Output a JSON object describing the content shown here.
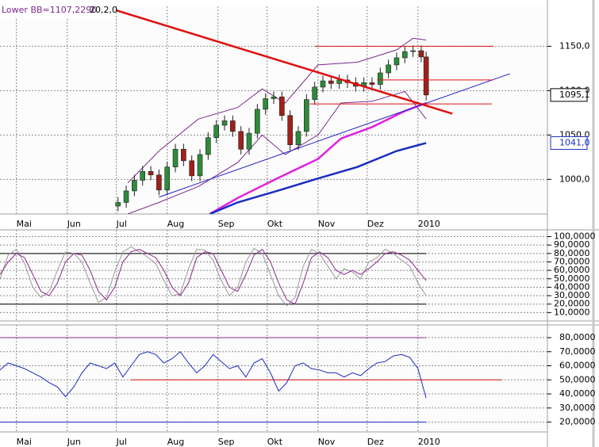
{
  "chart_data": [
    {
      "type": "candlestick",
      "indicator_label": "Lower BB=1107,2290",
      "indicator_params": "20,2,0",
      "x": [
        62,
        67,
        72,
        77,
        82,
        87,
        92,
        97,
        102,
        107,
        112,
        117,
        122,
        127,
        132,
        137,
        142,
        147,
        152,
        157,
        162,
        167,
        172,
        177,
        182,
        187,
        192,
        197,
        202,
        207,
        212,
        217,
        222,
        227,
        232,
        237,
        242,
        247,
        250
      ],
      "open": [
        970,
        974,
        987,
        999,
        1009,
        1005,
        988,
        1014,
        1034,
        1021,
        1004,
        1028,
        1047,
        1061,
        1066,
        1054,
        1034,
        1052,
        1079,
        1091,
        1093,
        1072,
        1039,
        1054,
        1090,
        1104,
        1111,
        1108,
        1112,
        1109,
        1105,
        1109,
        1107,
        1120,
        1129,
        1137,
        1144,
        1145,
        1138
      ],
      "high": [
        980,
        993,
        1005,
        1015,
        1015,
        1011,
        1020,
        1040,
        1040,
        1027,
        1034,
        1053,
        1067,
        1072,
        1072,
        1060,
        1058,
        1085,
        1097,
        1099,
        1099,
        1078,
        1060,
        1096,
        1110,
        1117,
        1117,
        1118,
        1118,
        1115,
        1115,
        1115,
        1126,
        1135,
        1143,
        1150,
        1151,
        1151,
        1144
      ],
      "low": [
        964,
        968,
        981,
        993,
        999,
        982,
        982,
        1008,
        1015,
        998,
        998,
        1022,
        1041,
        1055,
        1048,
        1028,
        1028,
        1046,
        1073,
        1085,
        1066,
        1033,
        1033,
        1048,
        1084,
        1098,
        1102,
        1102,
        1103,
        1099,
        1099,
        1101,
        1101,
        1114,
        1123,
        1131,
        1138,
        1132,
        1089
      ],
      "close": [
        974,
        987,
        999,
        1009,
        1005,
        988,
        1014,
        1034,
        1021,
        1004,
        1028,
        1047,
        1061,
        1066,
        1054,
        1034,
        1052,
        1079,
        1091,
        1093,
        1072,
        1039,
        1054,
        1090,
        1104,
        1111,
        1108,
        1112,
        1109,
        1105,
        1109,
        1107,
        1120,
        1129,
        1137,
        1144,
        1145,
        1138,
        1095.1
      ],
      "up_color": "#2e8b3a",
      "down_color": "#a0201a",
      "overlays": [
        {
          "color": "#7b2a8b",
          "width": 1,
          "x": [
            68,
            87,
            111,
            135,
            150,
            164,
            184,
            208,
            232,
            242,
            250
          ],
          "values": [
            996,
            1032,
            1068,
            1081,
            1102,
            1086,
            1129,
            1132,
            1146,
            1159,
            1157
          ]
        },
        {
          "color": "#7b2a8b",
          "width": 1,
          "x": [
            68,
            87,
            111,
            135,
            150,
            164,
            184,
            198,
            217,
            237,
            250
          ],
          "values": [
            961,
            974,
            992,
            1019,
            1050,
            1028,
            1050,
            1086,
            1088,
            1099,
            1068
          ]
        },
        {
          "color": "#e020e0",
          "width": 2.5,
          "x": [
            118,
            135,
            159,
            184,
            198,
            217,
            237,
            250
          ],
          "values": [
            961,
            979,
            1001,
            1023,
            1046,
            1059,
            1077,
            1086
          ]
        },
        {
          "color": "#1a2cc0",
          "width": 2.5,
          "x": [
            118,
            135,
            159,
            184,
            208,
            232,
            250
          ],
          "values": [
            961,
            974,
            987,
            1001,
            1014,
            1032,
            1041
          ]
        }
      ],
      "trendlines": [
        {
          "color": "#e01010",
          "width": 2.5,
          "x": [
            53,
            266
          ],
          "y": [
            1195,
            1074
          ]
        },
        {
          "color": "#2020c0",
          "width": 1,
          "x": [
            87,
            301
          ],
          "y": [
            980,
            1119
          ]
        },
        {
          "color": "#e01010",
          "width": 1,
          "x": [
            182,
            291
          ],
          "y": [
            1150,
            1150
          ]
        },
        {
          "color": "#e01010",
          "width": 1,
          "x": [
            220,
            291
          ],
          "y": [
            1112,
            1112
          ]
        },
        {
          "color": "#e01010",
          "width": 1,
          "x": [
            179,
            290
          ],
          "y": [
            1085,
            1085
          ]
        }
      ],
      "price_labels": [
        {
          "value": 1041,
          "label": "1041,0",
          "color": "#1a2cc0"
        },
        {
          "value": 1095.1,
          "label": "1095,1",
          "color": "#000000"
        }
      ],
      "xlim": [
        -10,
        324
      ],
      "xticks": [
        {
          "value": 0,
          "label": "Mai"
        },
        {
          "value": 31,
          "label": "Jun"
        },
        {
          "value": 61,
          "label": "Jul"
        },
        {
          "value": 92,
          "label": "Aug"
        },
        {
          "value": 123,
          "label": "Sep"
        },
        {
          "value": 153,
          "label": "Okt"
        },
        {
          "value": 184,
          "label": "Nov"
        },
        {
          "value": 214,
          "label": "Dez"
        },
        {
          "value": 245,
          "label": "2010"
        }
      ],
      "ylim": [
        961,
        1195
      ],
      "yticks": [
        {
          "value": 1000,
          "label": "1000,0"
        },
        {
          "value": 1050,
          "label": "1050,0"
        },
        {
          "value": 1100,
          "label": "1100,0"
        },
        {
          "value": 1150,
          "label": "1150,0"
        }
      ],
      "grid": true
    },
    {
      "type": "line",
      "x": [
        -10,
        -5,
        0,
        5,
        10,
        15,
        20,
        25,
        30,
        35,
        40,
        45,
        50,
        55,
        60,
        65,
        70,
        75,
        80,
        85,
        90,
        95,
        100,
        105,
        110,
        115,
        120,
        125,
        130,
        135,
        140,
        145,
        150,
        155,
        160,
        165,
        170,
        175,
        180,
        185,
        190,
        195,
        200,
        205,
        210,
        215,
        220,
        225,
        230,
        235,
        240,
        245,
        250
      ],
      "series": [
        {
          "color": "#9a9a9a",
          "width": 1,
          "values": [
            50,
            78,
            85,
            68,
            40,
            28,
            35,
            60,
            82,
            80,
            70,
            45,
            22,
            28,
            58,
            82,
            88,
            82,
            76,
            68,
            48,
            30,
            32,
            62,
            85,
            84,
            72,
            48,
            30,
            40,
            70,
            86,
            80,
            55,
            30,
            18,
            28,
            65,
            85,
            80,
            65,
            50,
            62,
            58,
            50,
            70,
            75,
            85,
            80,
            72,
            65,
            45,
            30
          ]
        },
        {
          "color": "#8b2a8b",
          "width": 1,
          "values": [
            55,
            70,
            80,
            75,
            55,
            35,
            30,
            45,
            70,
            80,
            78,
            60,
            35,
            25,
            40,
            70,
            82,
            85,
            80,
            75,
            60,
            40,
            30,
            45,
            75,
            82,
            80,
            60,
            40,
            35,
            55,
            78,
            85,
            70,
            45,
            25,
            20,
            45,
            75,
            82,
            75,
            60,
            55,
            60,
            55,
            62,
            70,
            80,
            82,
            78,
            72,
            60,
            48
          ]
        }
      ],
      "reference_lines": [
        {
          "value": 80,
          "color": "#000000",
          "from": -10,
          "to": 250
        },
        {
          "value": 20,
          "color": "#000000",
          "from": -10,
          "to": 250
        }
      ],
      "ylim": [
        0,
        108
      ],
      "yticks": [
        {
          "value": 10,
          "label": "10,0000"
        },
        {
          "value": 20,
          "label": "20,0000"
        },
        {
          "value": 30,
          "label": "30,0000"
        },
        {
          "value": 40,
          "label": "40,0000"
        },
        {
          "value": 50,
          "label": "50,0000"
        },
        {
          "value": 60,
          "label": "60,0000"
        },
        {
          "value": 70,
          "label": "70,0000"
        },
        {
          "value": 80,
          "label": "80,0000"
        },
        {
          "value": 90,
          "label": "90,0000"
        },
        {
          "value": 100,
          "label": "100,0000"
        }
      ],
      "grid": true
    },
    {
      "type": "line",
      "x": [
        -10,
        -5,
        0,
        5,
        10,
        15,
        20,
        25,
        30,
        35,
        40,
        45,
        50,
        55,
        60,
        65,
        70,
        75,
        80,
        85,
        90,
        95,
        100,
        105,
        110,
        115,
        120,
        125,
        130,
        135,
        140,
        145,
        150,
        155,
        160,
        165,
        170,
        175,
        180,
        185,
        190,
        195,
        200,
        205,
        210,
        215,
        220,
        225,
        230,
        235,
        240,
        245,
        250
      ],
      "series": [
        {
          "color": "#1a2cc0",
          "width": 1,
          "values": [
            57,
            62,
            60,
            58,
            55,
            52,
            48,
            45,
            38,
            45,
            55,
            62,
            60,
            58,
            62,
            52,
            60,
            68,
            70,
            68,
            62,
            65,
            70,
            62,
            55,
            60,
            68,
            63,
            58,
            60,
            52,
            62,
            65,
            55,
            42,
            48,
            60,
            62,
            58,
            57,
            55,
            55,
            52,
            55,
            53,
            58,
            62,
            63,
            67,
            68,
            66,
            58,
            37
          ]
        }
      ],
      "reference_lines": [
        {
          "value": 80,
          "color": "#8b2a8b",
          "from": -10,
          "to": 250
        },
        {
          "value": 20,
          "color": "#1a2cc0",
          "from": -10,
          "to": 250
        },
        {
          "value": 50,
          "color": "#e01010",
          "from": 70,
          "to": 296
        }
      ],
      "xticks": [
        {
          "value": 0,
          "label": "Mai"
        },
        {
          "value": 31,
          "label": "Jun"
        },
        {
          "value": 61,
          "label": "Jul"
        },
        {
          "value": 92,
          "label": "Aug"
        },
        {
          "value": 123,
          "label": "Sep"
        },
        {
          "value": 153,
          "label": "Okt"
        },
        {
          "value": 184,
          "label": "Nov"
        },
        {
          "value": 214,
          "label": "Dez"
        },
        {
          "value": 245,
          "label": "2010"
        }
      ],
      "ylim": [
        13,
        89
      ],
      "yticks": [
        {
          "value": 20,
          "label": "20,0000"
        },
        {
          "value": 30,
          "label": "30,0000"
        },
        {
          "value": 40,
          "label": "40,0000"
        },
        {
          "value": 50,
          "label": "50,0000"
        },
        {
          "value": 60,
          "label": "60,0000"
        },
        {
          "value": 70,
          "label": "70,0000"
        },
        {
          "value": 80,
          "label": "80,0000"
        }
      ],
      "grid": true
    }
  ]
}
